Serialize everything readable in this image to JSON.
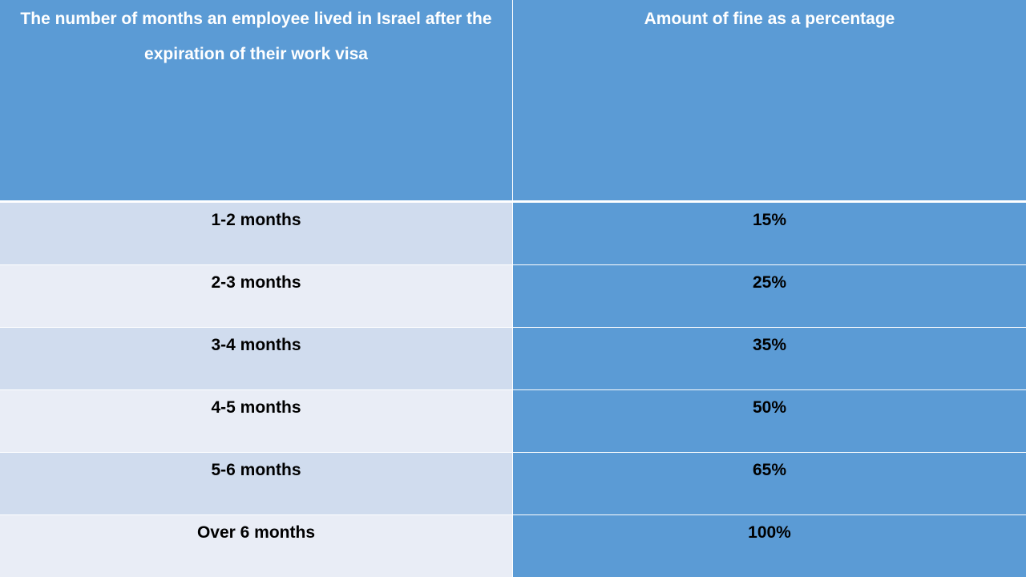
{
  "table": {
    "headers": [
      "The number of months an employee lived in Israel after the expiration of their work visa",
      "Amount of fine as a percentage"
    ],
    "rows": [
      {
        "months": "1-2 months",
        "fine": "15%"
      },
      {
        "months": "2-3 months",
        "fine": "25%"
      },
      {
        "months": "3-4 months",
        "fine": "35%"
      },
      {
        "months": "4-5 months",
        "fine": "50%"
      },
      {
        "months": "5-6 months",
        "fine": "65%"
      },
      {
        "months": "Over 6 months",
        "fine": "100%"
      }
    ]
  },
  "colors": {
    "header_bg": "#5b9bd5",
    "row_light": "#e9edf6",
    "row_medium": "#d0dcee",
    "fine_bg": "#5b9bd5"
  }
}
